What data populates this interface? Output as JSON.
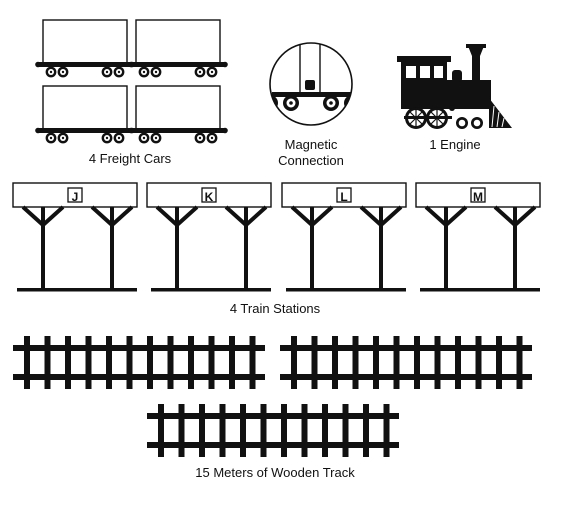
{
  "labels": {
    "freight_cars": "4 Freight Cars",
    "magnetic_line1": "Magnetic",
    "magnetic_line2": "Connection",
    "engine": "1 Engine",
    "stations": "4 Train Stations",
    "track": "15 Meters of Wooden Track"
  },
  "stations": [
    {
      "letter": "J"
    },
    {
      "letter": "K"
    },
    {
      "letter": "L"
    },
    {
      "letter": "M"
    }
  ],
  "colors": {
    "ink": "#111111",
    "paper": "#ffffff"
  }
}
